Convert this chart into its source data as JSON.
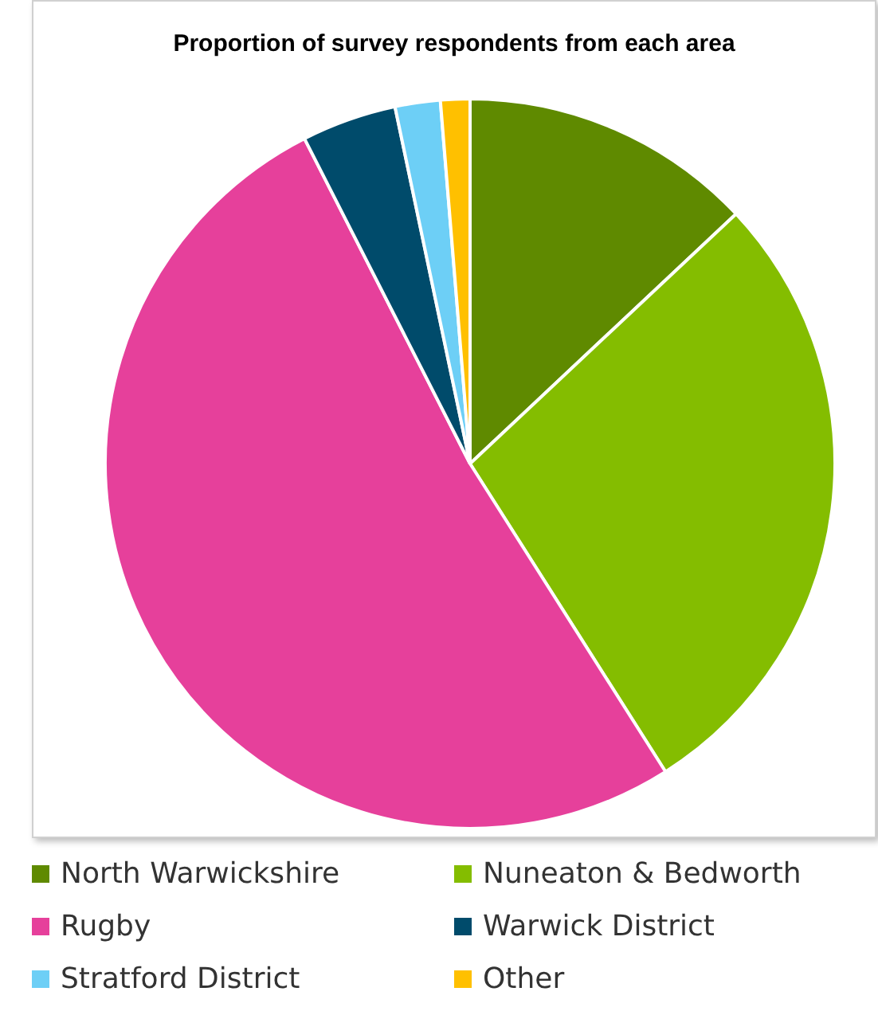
{
  "chart_data": {
    "type": "pie",
    "title": "Proportion of survey respondents from each area",
    "categories": [
      "North Warwickshire",
      "Nuneaton & Bedworth",
      "Rugby",
      "Warwick District",
      "Stratford District",
      "Other"
    ],
    "values": [
      13,
      28,
      51.5,
      4.2,
      2,
      1.3
    ],
    "colors": [
      "#5f8a00",
      "#84bd00",
      "#e6409b",
      "#004b6b",
      "#6dcff6",
      "#ffc000"
    ],
    "legend": "bottom"
  }
}
